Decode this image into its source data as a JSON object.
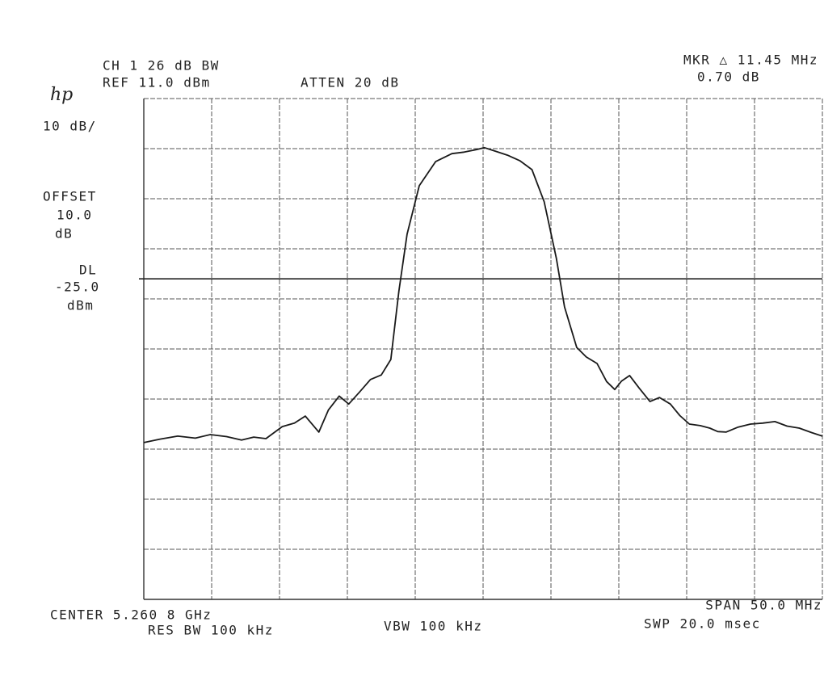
{
  "header": {
    "logo": "hp",
    "channel": "CH 1 26 dB BW",
    "reference": "REF 11.0 dBm",
    "attenuation": "ATTEN 20 dB",
    "marker": "MKR △ 11.45 MHz",
    "marker_level": "0.70 dB",
    "scale": "10 dB/",
    "offset_title": "OFFSET",
    "offset_value": "10.0",
    "offset_unit": "dB",
    "display_line_title": "DL",
    "display_line_value": "-25.0",
    "display_line_unit": "dBm"
  },
  "footer": {
    "center": "CENTER 5.260 8 GHz",
    "res_bw": "RES BW 100 kHz",
    "vbw": "VBW 100 kHz",
    "span": "SPAN 50.0 MHz",
    "sweep": "SWP 20.0 msec"
  },
  "chart_data": {
    "type": "line",
    "color": "#1a1a1a",
    "grid": true,
    "xlim": [
      -25,
      25
    ],
    "ylim": [
      -89,
      11
    ],
    "xticks": [
      -25,
      -20,
      -15,
      -10,
      -5,
      0,
      5,
      10,
      15,
      20,
      25
    ],
    "yticks": [
      -89,
      -79,
      -69,
      -59,
      -49,
      -39,
      -29,
      -19,
      -9,
      1,
      11
    ],
    "display_line": -25,
    "x": [
      -25,
      -23.8,
      -22.5,
      -21.2,
      -20.1,
      -18.9,
      -17.8,
      -16.9,
      -16,
      -14.8,
      -13.9,
      -13.1,
      -12.1,
      -11.4,
      -10.6,
      -9.9,
      -9.1,
      -8.3,
      -7.5,
      -6.8,
      -6.2,
      -5.6,
      -4.7,
      -3.5,
      -2.3,
      -1.4,
      -0.5,
      0.1,
      0.9,
      1.8,
      2.7,
      3.6,
      4.5,
      5.4,
      6,
      6.9,
      7.6,
      8.4,
      9.1,
      9.7,
      10.2,
      10.8,
      11.5,
      12.3,
      13,
      13.8,
      14.5,
      15.2,
      16,
      16.7,
      17.3,
      17.9,
      18.8,
      19.7,
      20.6,
      21.5,
      22.4,
      23.3,
      24.2,
      25
    ],
    "values": [
      -57.7,
      -57,
      -56.4,
      -56.8,
      -56.1,
      -56.5,
      -57.2,
      -56.6,
      -56.9,
      -54.5,
      -53.8,
      -52.4,
      -55.6,
      -51.2,
      -48.4,
      -50,
      -47.6,
      -45.1,
      -44.2,
      -41.1,
      -27.4,
      -16.1,
      -6.4,
      -1.6,
      0,
      0.3,
      0.8,
      1.2,
      0.5,
      -0.3,
      -1.4,
      -3.2,
      -9.6,
      -20.9,
      -30.6,
      -38.7,
      -40.6,
      -41.9,
      -45.5,
      -47.1,
      -45.4,
      -44.3,
      -46.8,
      -49.5,
      -48.7,
      -50,
      -52.3,
      -54,
      -54.3,
      -54.8,
      -55.5,
      -55.6,
      -54.6,
      -54,
      -53.8,
      -53.5,
      -54.4,
      -54.8,
      -55.7,
      -56.4
    ]
  }
}
